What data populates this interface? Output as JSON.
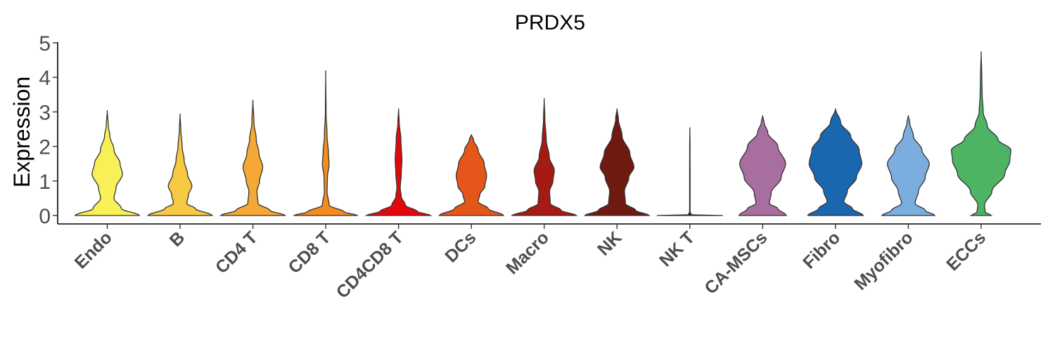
{
  "chart_data": {
    "type": "violin",
    "title": "PRDX5",
    "xlabel": "",
    "ylabel": "Expression",
    "ylim": [
      0,
      5
    ],
    "yticks": [
      "0",
      "1",
      "2",
      "3",
      "4",
      "5"
    ],
    "grid": false,
    "legend": "none",
    "categories": [
      "Endo",
      "B",
      "CD4 T",
      "CD8 T",
      "CD4CD8 T",
      "DCs",
      "Macro",
      "NK",
      "NK T",
      "CA-MSCs",
      "Fibro",
      "Myofibro",
      "ECCs"
    ],
    "colors": [
      "#F7F057",
      "#F7C842",
      "#F5A834",
      "#F48C22",
      "#E3080C",
      "#E5561A",
      "#A51A11",
      "#6E1A10",
      "#5A0E0E",
      "#A86EA0",
      "#1A67B0",
      "#7BAEDE",
      "#4DB463"
    ],
    "series": [
      {
        "name": "Endo",
        "max": 3.05,
        "profile": [
          [
            0,
            0.95
          ],
          [
            0.2,
            0.42
          ],
          [
            0.5,
            0.2
          ],
          [
            0.8,
            0.26
          ],
          [
            1.2,
            0.45
          ],
          [
            1.5,
            0.38
          ],
          [
            1.9,
            0.2
          ],
          [
            2.3,
            0.08
          ],
          [
            2.6,
            0.03
          ],
          [
            3.05,
            0
          ]
        ]
      },
      {
        "name": "B",
        "max": 2.95,
        "profile": [
          [
            0,
            0.95
          ],
          [
            0.2,
            0.45
          ],
          [
            0.35,
            0.2
          ],
          [
            0.6,
            0.25
          ],
          [
            0.85,
            0.35
          ],
          [
            1.2,
            0.22
          ],
          [
            1.6,
            0.12
          ],
          [
            2.0,
            0.06
          ],
          [
            2.5,
            0.02
          ],
          [
            2.95,
            0
          ]
        ]
      },
      {
        "name": "CD4 T",
        "max": 3.35,
        "profile": [
          [
            0,
            0.95
          ],
          [
            0.15,
            0.5
          ],
          [
            0.35,
            0.15
          ],
          [
            0.7,
            0.12
          ],
          [
            1.0,
            0.2
          ],
          [
            1.4,
            0.29
          ],
          [
            1.8,
            0.18
          ],
          [
            2.2,
            0.1
          ],
          [
            2.7,
            0.03
          ],
          [
            3.35,
            0
          ]
        ]
      },
      {
        "name": "CD8 T",
        "max": 4.2,
        "profile": [
          [
            0,
            0.95
          ],
          [
            0.1,
            0.55
          ],
          [
            0.3,
            0.1
          ],
          [
            0.7,
            0.04
          ],
          [
            1.1,
            0.05
          ],
          [
            1.5,
            0.1
          ],
          [
            1.8,
            0.08
          ],
          [
            2.3,
            0.04
          ],
          [
            3.0,
            0.01
          ],
          [
            4.2,
            0
          ]
        ]
      },
      {
        "name": "CD4CD8 T",
        "max": 3.1,
        "profile": [
          [
            0,
            0.95
          ],
          [
            0.12,
            0.55
          ],
          [
            0.3,
            0.2
          ],
          [
            0.55,
            0.08
          ],
          [
            0.8,
            0.05
          ],
          [
            1.2,
            0.08
          ],
          [
            1.6,
            0.1
          ],
          [
            2.2,
            0.07
          ],
          [
            2.7,
            0.02
          ],
          [
            3.1,
            0
          ]
        ]
      },
      {
        "name": "DCs",
        "max": 2.35,
        "profile": [
          [
            0,
            0.95
          ],
          [
            0.2,
            0.5
          ],
          [
            0.4,
            0.2
          ],
          [
            0.6,
            0.25
          ],
          [
            0.85,
            0.4
          ],
          [
            1.15,
            0.45
          ],
          [
            1.5,
            0.38
          ],
          [
            1.9,
            0.2
          ],
          [
            2.2,
            0.06
          ],
          [
            2.35,
            0
          ]
        ]
      },
      {
        "name": "Macro",
        "max": 3.4,
        "profile": [
          [
            0,
            0.95
          ],
          [
            0.15,
            0.5
          ],
          [
            0.35,
            0.18
          ],
          [
            0.7,
            0.16
          ],
          [
            1.0,
            0.26
          ],
          [
            1.3,
            0.3
          ],
          [
            1.7,
            0.15
          ],
          [
            2.2,
            0.06
          ],
          [
            2.8,
            0.02
          ],
          [
            3.4,
            0
          ]
        ]
      },
      {
        "name": "NK",
        "max": 3.1,
        "profile": [
          [
            0,
            0.95
          ],
          [
            0.15,
            0.55
          ],
          [
            0.35,
            0.25
          ],
          [
            0.7,
            0.22
          ],
          [
            1.1,
            0.35
          ],
          [
            1.4,
            0.5
          ],
          [
            1.8,
            0.38
          ],
          [
            2.3,
            0.15
          ],
          [
            2.8,
            0.04
          ],
          [
            3.1,
            0
          ]
        ]
      },
      {
        "name": "NK T",
        "max": 2.55,
        "profile": [
          [
            0,
            0.98
          ],
          [
            0.02,
            0.05
          ],
          [
            0.1,
            0.008
          ],
          [
            1.0,
            0.008
          ],
          [
            2.0,
            0.006
          ],
          [
            2.55,
            0
          ]
        ]
      },
      {
        "name": "CA-MSCs",
        "max": 2.9,
        "profile": [
          [
            0,
            0.7
          ],
          [
            0.2,
            0.45
          ],
          [
            0.35,
            0.2
          ],
          [
            0.65,
            0.25
          ],
          [
            1.1,
            0.55
          ],
          [
            1.5,
            0.68
          ],
          [
            2.0,
            0.45
          ],
          [
            2.4,
            0.15
          ],
          [
            2.7,
            0.04
          ],
          [
            2.9,
            0
          ]
        ]
      },
      {
        "name": "Fibro",
        "max": 3.1,
        "profile": [
          [
            0,
            0.82
          ],
          [
            0.2,
            0.5
          ],
          [
            0.4,
            0.25
          ],
          [
            0.7,
            0.35
          ],
          [
            1.1,
            0.62
          ],
          [
            1.5,
            0.78
          ],
          [
            1.9,
            0.7
          ],
          [
            2.3,
            0.45
          ],
          [
            2.7,
            0.15
          ],
          [
            3.1,
            0
          ]
        ]
      },
      {
        "name": "Myofibro",
        "max": 2.9,
        "profile": [
          [
            0,
            0.78
          ],
          [
            0.15,
            0.5
          ],
          [
            0.35,
            0.2
          ],
          [
            0.7,
            0.3
          ],
          [
            1.1,
            0.5
          ],
          [
            1.5,
            0.62
          ],
          [
            1.9,
            0.4
          ],
          [
            2.3,
            0.15
          ],
          [
            2.7,
            0.04
          ],
          [
            2.9,
            0
          ]
        ]
      },
      {
        "name": "ECCs",
        "max": 4.75,
        "profile": [
          [
            0,
            0.3
          ],
          [
            0.1,
            0.12
          ],
          [
            0.3,
            0.1
          ],
          [
            0.7,
            0.32
          ],
          [
            1.2,
            0.7
          ],
          [
            1.6,
            0.85
          ],
          [
            1.9,
            0.88
          ],
          [
            2.2,
            0.5
          ],
          [
            2.6,
            0.18
          ],
          [
            3.0,
            0.06
          ],
          [
            3.5,
            0.03
          ],
          [
            4.0,
            0.02
          ],
          [
            4.75,
            0
          ]
        ]
      }
    ]
  }
}
